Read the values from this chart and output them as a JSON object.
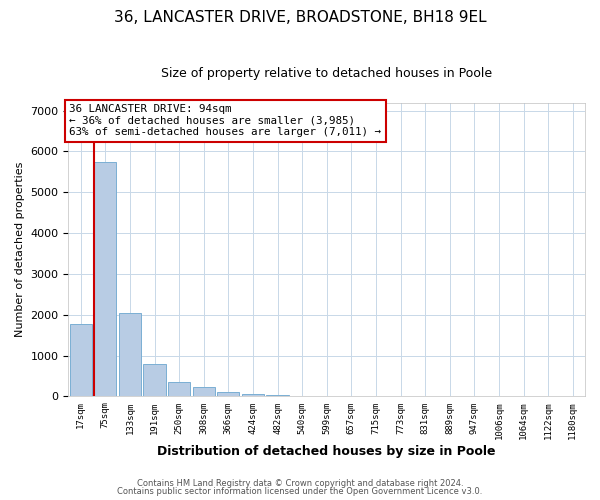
{
  "title1": "36, LANCASTER DRIVE, BROADSTONE, BH18 9EL",
  "title2": "Size of property relative to detached houses in Poole",
  "xlabel": "Distribution of detached houses by size in Poole",
  "ylabel": "Number of detached properties",
  "bar_labels": [
    "17sqm",
    "75sqm",
    "133sqm",
    "191sqm",
    "250sqm",
    "308sqm",
    "366sqm",
    "424sqm",
    "482sqm",
    "540sqm",
    "599sqm",
    "657sqm",
    "715sqm",
    "773sqm",
    "831sqm",
    "889sqm",
    "947sqm",
    "1006sqm",
    "1064sqm",
    "1122sqm",
    "1180sqm"
  ],
  "bar_values": [
    1770,
    5750,
    2040,
    800,
    355,
    220,
    105,
    60,
    30,
    10,
    5,
    0,
    0,
    0,
    0,
    0,
    0,
    0,
    0,
    0,
    0
  ],
  "bar_color": "#b8cce4",
  "bar_edge_color": "#7bafd4",
  "vline_color": "#cc0000",
  "ylim": [
    0,
    7200
  ],
  "yticks": [
    0,
    1000,
    2000,
    3000,
    4000,
    5000,
    6000,
    7000
  ],
  "annotation_text": "36 LANCASTER DRIVE: 94sqm\n← 36% of detached houses are smaller (3,985)\n63% of semi-detached houses are larger (7,011) →",
  "annotation_box_color": "#ffffff",
  "annotation_box_edge_color": "#cc0000",
  "footer1": "Contains HM Land Registry data © Crown copyright and database right 2024.",
  "footer2": "Contains public sector information licensed under the Open Government Licence v3.0.",
  "bg_color": "#ffffff",
  "grid_color": "#c8d8e8",
  "title1_fontsize": 11,
  "title2_fontsize": 9
}
